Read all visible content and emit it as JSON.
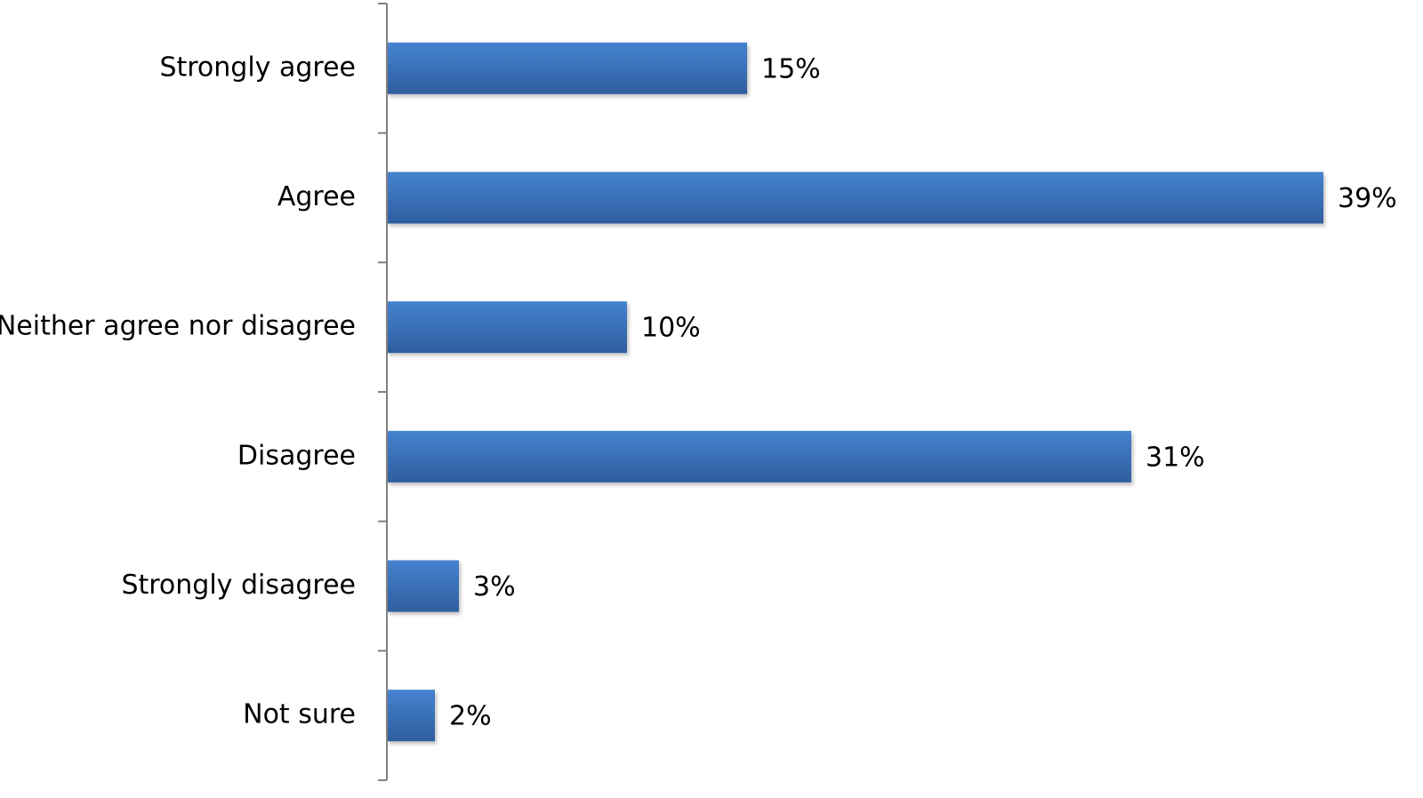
{
  "chart_data": {
    "type": "bar",
    "orientation": "horizontal",
    "categories": [
      "Strongly agree",
      "Agree",
      "Neither agree nor disagree",
      "Disagree",
      "Strongly disagree",
      "Not sure"
    ],
    "values": [
      15,
      39,
      10,
      31,
      3,
      2
    ],
    "value_labels": [
      "15%",
      "39%",
      "10%",
      "31%",
      "3%",
      "2%"
    ],
    "value_unit": "%",
    "xlim": [
      0,
      39
    ],
    "title": "",
    "xlabel": "",
    "ylabel": "",
    "grid": false,
    "legend": "none",
    "bar_color": "#3A72BE",
    "bar_gradient": [
      "#4682D0",
      "#2E5E9E"
    ],
    "axis_color": "#808080"
  }
}
